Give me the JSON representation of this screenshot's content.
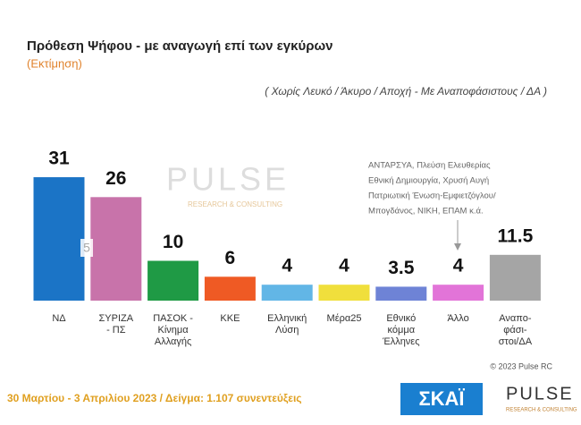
{
  "chart_data": {
    "type": "bar",
    "title": "Πρόθεση Ψήφου - με αναγωγή επί των εγκύρων",
    "subtitle": "(Εκτίμηση)",
    "note": "( Χωρίς Λευκό / Άκυρο / Αποχή  -  Με Αναποφάσιστους / ΔΑ )",
    "categories": [
      [
        "ΝΔ"
      ],
      [
        "ΣΥΡΙΖΑ",
        "- ΠΣ"
      ],
      [
        "ΠΑΣΟΚ -",
        "Κίνημα",
        "Αλλαγής"
      ],
      [
        "ΚΚΕ"
      ],
      [
        "Ελληνική",
        "Λύση"
      ],
      [
        "Μέρα25"
      ],
      [
        "Εθνικό",
        "κόμμα",
        "Έλληνες"
      ],
      [
        "Άλλο"
      ],
      [
        "Αναπο-",
        "φάσι-",
        "στοι/ΔΑ"
      ]
    ],
    "values": [
      31,
      26,
      10,
      6,
      4,
      4,
      3.5,
      4,
      11.5
    ],
    "colors": [
      "#1b74c6",
      "#c873aa",
      "#1f9a45",
      "#ef5a24",
      "#62b6e6",
      "#f0df3c",
      "#6e83d6",
      "#e274d8",
      "#a5a5a5"
    ],
    "annotations": [
      "5",
      "ΑΝΤΑΡΣΥΑ, Πλεύση Ελευθερίας",
      "Εθνική Δημιουργία, Χρυσή Αυγή",
      "Πατριωτική Ένωση-Εμφιετζόγλου/",
      "Μπογδάνος, ΝΙΚΗ, ΕΠΑΜ    κ.ά."
    ],
    "copyright": "© 2023 Pulse RC",
    "footer": "30 Μαρτίου - 3  Απριλίου  2023  /  Δείγμα:  1.107 συνεντεύξεις",
    "logos": [
      "ΣΚΑΪ",
      "PULSE",
      "RESEARCH & CONSULTING"
    ]
  }
}
